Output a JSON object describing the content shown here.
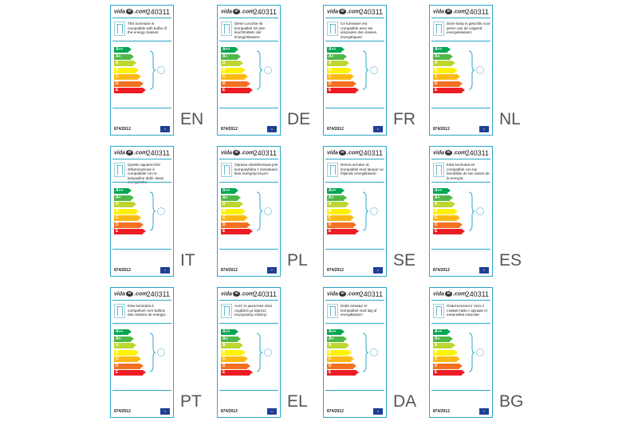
{
  "label": {
    "brand_left": "vida",
    "brand_mark": "xl",
    "brand_right": ".com",
    "code": "240311",
    "regulation": "874/2012",
    "eu_flag": "EU",
    "classes": [
      "A++",
      "A+",
      "A",
      "B",
      "C",
      "D",
      "E"
    ],
    "class_colors": [
      "#00a651",
      "#50b848",
      "#bed630",
      "#fff200",
      "#fdb913",
      "#f37021",
      "#ed1c24"
    ]
  },
  "labels": [
    {
      "lang": "EN",
      "text": "This luminaire is compatible with bulbs of the energy classes:"
    },
    {
      "lang": "DE",
      "text": "Diese Leuchte ist kompatibel mit den leuchtmitteln der Energieklassen:"
    },
    {
      "lang": "FR",
      "text": "Ce luminaire est compatible avec les ampoules des classes énergétiques:"
    },
    {
      "lang": "NL",
      "text": "Deze lamp is geschikt voor peren van de volgend energieklassen:"
    },
    {
      "lang": "IT",
      "text": "Questo apparecchio d'illuminazione è compatibile con le lampadine delle classi energetiche:"
    },
    {
      "lang": "PL",
      "text": "Oprawa oświetleniowa jest kompatybilna z żarówkami klas energetycznych:"
    },
    {
      "lang": "SE",
      "text": "Denna armatur är kompatibel med lampor av följande energiklasser:"
    },
    {
      "lang": "ES",
      "text": "Esta luminaria es compatible con las bombillas de las clases de la energía:"
    },
    {
      "lang": "PT",
      "text": "Esta luminária é compatível com bulbos das classes de energia:"
    },
    {
      "lang": "EL",
      "text": "Αυτό το φωτιστικό είναι συμβατό με λάμπες ενεργειακής κλάσης:"
    },
    {
      "lang": "DA",
      "text": "Dette armatur er kompatibel med løg af energiklasser:"
    },
    {
      "lang": "BG",
      "text": "Осветителното тяло е съвместимо с крушки от енергийни класове:"
    }
  ]
}
